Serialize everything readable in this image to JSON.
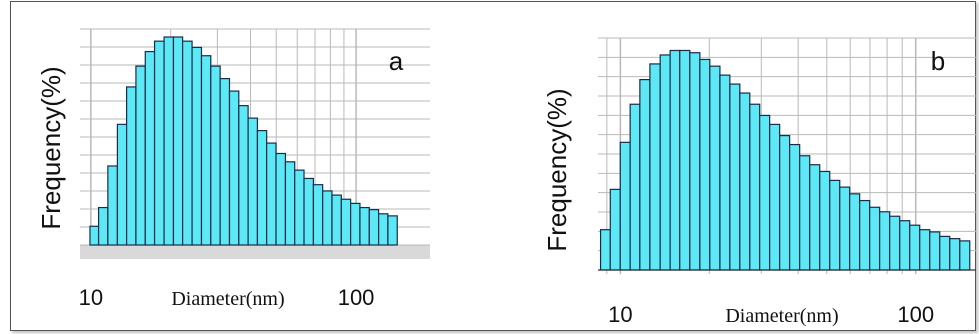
{
  "chart_data": [
    {
      "type": "bar",
      "panel_label": "a",
      "xlabel": "Diameter(nm)",
      "ylabel": "Frequency(%)",
      "xscale": "log",
      "xticks": [
        {
          "value": 10,
          "label": "10"
        },
        {
          "value": 100,
          "label": "100"
        }
      ],
      "xlim": [
        9.1,
        190
      ],
      "ylim": [
        0,
        1
      ],
      "grid": true,
      "bins": [
        {
          "x": 10.3,
          "y": 0.09
        },
        {
          "x": 11.1,
          "y": 0.18
        },
        {
          "x": 12.1,
          "y": 0.38
        },
        {
          "x": 13.1,
          "y": 0.58
        },
        {
          "x": 14.2,
          "y": 0.76
        },
        {
          "x": 15.4,
          "y": 0.86
        },
        {
          "x": 16.7,
          "y": 0.93
        },
        {
          "x": 18.1,
          "y": 0.98
        },
        {
          "x": 19.7,
          "y": 1.0
        },
        {
          "x": 21.3,
          "y": 1.0
        },
        {
          "x": 23.1,
          "y": 0.98
        },
        {
          "x": 25.1,
          "y": 0.95
        },
        {
          "x": 27.2,
          "y": 0.91
        },
        {
          "x": 29.5,
          "y": 0.86
        },
        {
          "x": 32.0,
          "y": 0.8
        },
        {
          "x": 34.7,
          "y": 0.74
        },
        {
          "x": 37.6,
          "y": 0.67
        },
        {
          "x": 40.8,
          "y": 0.61
        },
        {
          "x": 44.2,
          "y": 0.55
        },
        {
          "x": 47.9,
          "y": 0.49
        },
        {
          "x": 52.0,
          "y": 0.44
        },
        {
          "x": 56.4,
          "y": 0.4
        },
        {
          "x": 61.1,
          "y": 0.36
        },
        {
          "x": 66.3,
          "y": 0.32
        },
        {
          "x": 71.9,
          "y": 0.29
        },
        {
          "x": 77.9,
          "y": 0.26
        },
        {
          "x": 84.5,
          "y": 0.24
        },
        {
          "x": 91.6,
          "y": 0.22
        },
        {
          "x": 99.3,
          "y": 0.2
        },
        {
          "x": 107.7,
          "y": 0.18
        },
        {
          "x": 116.8,
          "y": 0.17
        },
        {
          "x": 126.6,
          "y": 0.15
        },
        {
          "x": 137.3,
          "y": 0.14
        }
      ]
    },
    {
      "type": "bar",
      "panel_label": "b",
      "xlabel": "Diameter(nm)",
      "ylabel": "Frequency(%)",
      "xscale": "log",
      "xticks": [
        {
          "value": 10,
          "label": "10"
        },
        {
          "value": 100,
          "label": "100"
        }
      ],
      "xlim": [
        8.4,
        160
      ],
      "ylim": [
        0,
        1
      ],
      "grid": true,
      "bins": [
        {
          "x": 8.9,
          "y": 0.18
        },
        {
          "x": 9.6,
          "y": 0.36
        },
        {
          "x": 10.4,
          "y": 0.57
        },
        {
          "x": 11.2,
          "y": 0.74
        },
        {
          "x": 12.1,
          "y": 0.85
        },
        {
          "x": 13.1,
          "y": 0.92
        },
        {
          "x": 14.2,
          "y": 0.96
        },
        {
          "x": 15.3,
          "y": 0.98
        },
        {
          "x": 16.5,
          "y": 0.98
        },
        {
          "x": 17.9,
          "y": 0.97
        },
        {
          "x": 19.3,
          "y": 0.94
        },
        {
          "x": 20.9,
          "y": 0.91
        },
        {
          "x": 22.6,
          "y": 0.87
        },
        {
          "x": 24.4,
          "y": 0.83
        },
        {
          "x": 26.4,
          "y": 0.79
        },
        {
          "x": 28.5,
          "y": 0.74
        },
        {
          "x": 30.8,
          "y": 0.69
        },
        {
          "x": 33.3,
          "y": 0.65
        },
        {
          "x": 36.0,
          "y": 0.6
        },
        {
          "x": 38.9,
          "y": 0.56
        },
        {
          "x": 42.1,
          "y": 0.51
        },
        {
          "x": 45.5,
          "y": 0.47
        },
        {
          "x": 49.2,
          "y": 0.44
        },
        {
          "x": 53.2,
          "y": 0.4
        },
        {
          "x": 57.5,
          "y": 0.37
        },
        {
          "x": 62.1,
          "y": 0.34
        },
        {
          "x": 67.2,
          "y": 0.31
        },
        {
          "x": 72.6,
          "y": 0.28
        },
        {
          "x": 78.5,
          "y": 0.26
        },
        {
          "x": 84.9,
          "y": 0.24
        },
        {
          "x": 91.8,
          "y": 0.22
        },
        {
          "x": 99.2,
          "y": 0.2
        },
        {
          "x": 107.3,
          "y": 0.18
        },
        {
          "x": 116.0,
          "y": 0.17
        },
        {
          "x": 125.4,
          "y": 0.15
        },
        {
          "x": 135.6,
          "y": 0.14
        },
        {
          "x": 146.6,
          "y": 0.13
        }
      ]
    }
  ],
  "colors": {
    "bar_fill": "#5ce8f4",
    "bar_stroke": "#1b2b4a",
    "grid": "#b9b9b9",
    "floor": "#d9d9d9"
  }
}
